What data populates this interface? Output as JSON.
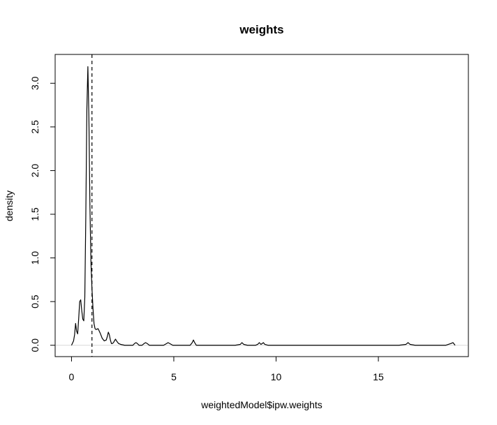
{
  "chart_data": {
    "type": "line",
    "title": "weights",
    "xlabel": "weightedModel$ipw.weights",
    "ylabel": "density",
    "xlim": [
      -0.8,
      19.4
    ],
    "ylim": [
      -0.13,
      3.33
    ],
    "x_ticks": [
      0,
      5,
      10,
      15
    ],
    "x_tick_labels": [
      "0",
      "5",
      "10",
      "15"
    ],
    "y_ticks": [
      0.0,
      0.5,
      1.0,
      1.5,
      2.0,
      2.5,
      3.0
    ],
    "y_tick_labels": [
      "0.0",
      "0.5",
      "1.0",
      "1.5",
      "2.0",
      "2.5",
      "3.0"
    ],
    "grid": false,
    "legend": "none",
    "baseline_y": 0,
    "baseline_color": "#d8d8d8",
    "reference_line": {
      "x": 1.0,
      "style": "dashed"
    },
    "series": [
      {
        "color": "#000000",
        "x": [
          0.0,
          0.1,
          0.15,
          0.2,
          0.25,
          0.3,
          0.35,
          0.4,
          0.45,
          0.5,
          0.55,
          0.6,
          0.65,
          0.7,
          0.75,
          0.8,
          0.85,
          0.9,
          0.95,
          1.0,
          1.05,
          1.1,
          1.15,
          1.2,
          1.3,
          1.4,
          1.5,
          1.6,
          1.7,
          1.75,
          1.8,
          1.85,
          1.9,
          1.95,
          2.0,
          2.05,
          2.1,
          2.15,
          2.2,
          2.3,
          2.4,
          2.6,
          2.8,
          3.0,
          3.08,
          3.15,
          3.22,
          3.3,
          3.45,
          3.55,
          3.62,
          3.7,
          3.8,
          4.0,
          4.5,
          4.65,
          4.72,
          4.8,
          4.95,
          5.5,
          5.8,
          5.9,
          5.96,
          6.02,
          6.1,
          6.3,
          7.0,
          8.0,
          8.25,
          8.33,
          8.42,
          8.6,
          9.0,
          9.1,
          9.18,
          9.26,
          9.32,
          9.38,
          9.45,
          9.6,
          10.0,
          12.0,
          14.0,
          16.0,
          16.35,
          16.45,
          16.55,
          16.8,
          17.5,
          18.3,
          18.55,
          18.65,
          18.75
        ],
        "y": [
          0.0,
          0.05,
          0.12,
          0.25,
          0.16,
          0.13,
          0.3,
          0.5,
          0.52,
          0.4,
          0.3,
          0.28,
          0.55,
          1.5,
          2.7,
          3.19,
          2.6,
          1.6,
          0.95,
          0.65,
          0.42,
          0.25,
          0.19,
          0.18,
          0.19,
          0.14,
          0.08,
          0.05,
          0.06,
          0.1,
          0.15,
          0.12,
          0.06,
          0.02,
          0.02,
          0.03,
          0.05,
          0.07,
          0.05,
          0.02,
          0.01,
          0.0,
          0.0,
          0.0,
          0.02,
          0.03,
          0.02,
          0.0,
          0.0,
          0.02,
          0.03,
          0.02,
          0.0,
          0.0,
          0.0,
          0.02,
          0.03,
          0.02,
          0.0,
          0.0,
          0.0,
          0.03,
          0.06,
          0.03,
          0.0,
          0.0,
          0.0,
          0.0,
          0.01,
          0.03,
          0.01,
          0.0,
          0.0,
          0.01,
          0.03,
          0.01,
          0.02,
          0.03,
          0.01,
          0.0,
          0.0,
          0.0,
          0.0,
          0.0,
          0.01,
          0.03,
          0.01,
          0.0,
          0.0,
          0.0,
          0.02,
          0.03,
          0.0
        ]
      }
    ]
  }
}
